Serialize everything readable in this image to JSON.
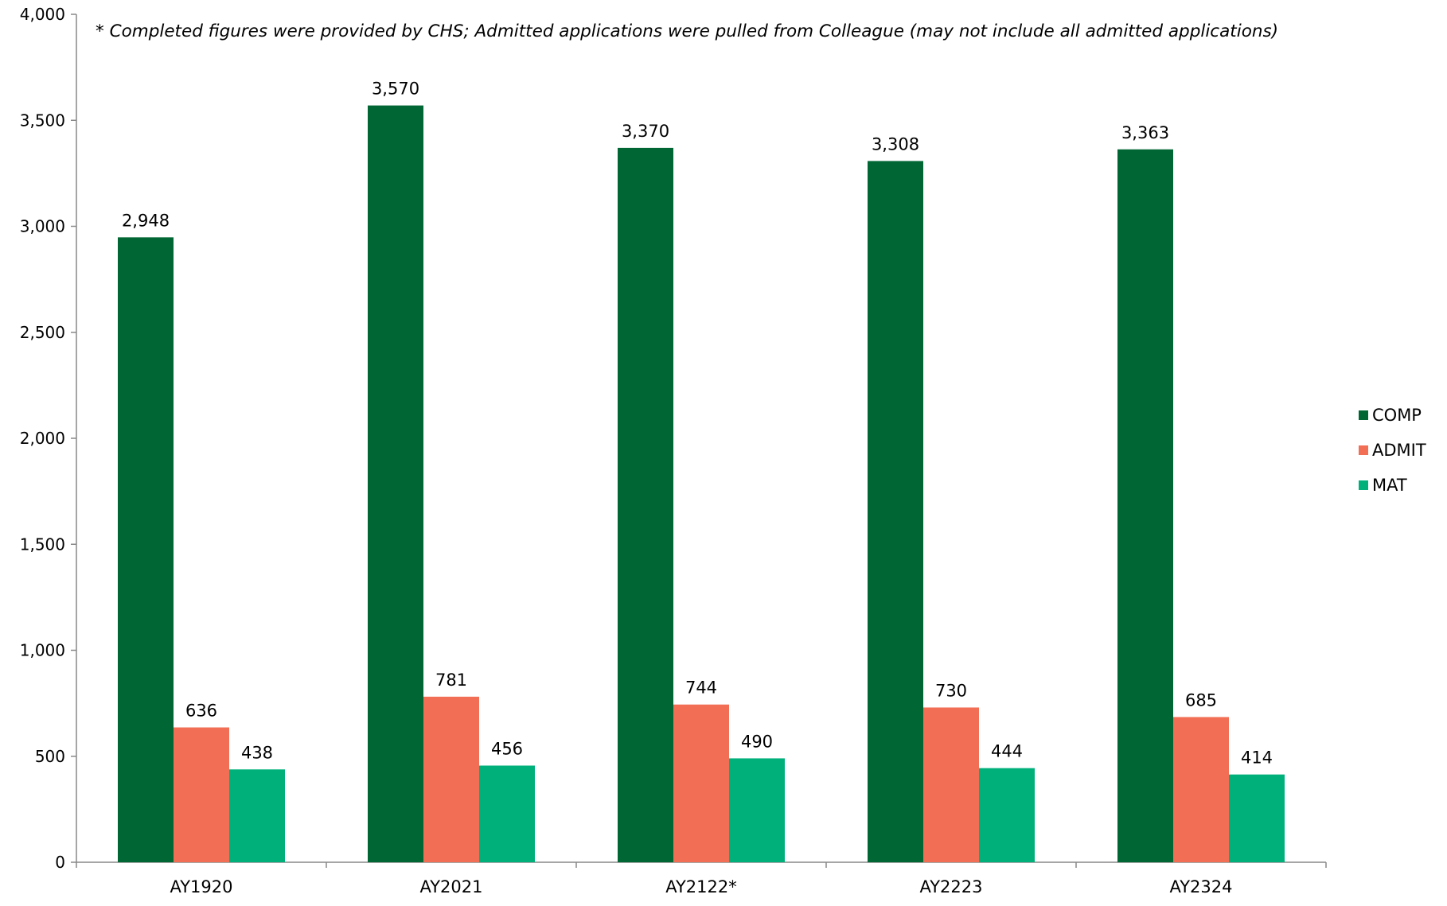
{
  "chart_data": {
    "type": "bar",
    "annotation": "* Completed figures were provided by CHS; Admitted applications were pulled from Colleague (may not include all admitted applications)",
    "categories": [
      "AY1920",
      "AY2021",
      "AY2122*",
      "AY2223",
      "AY2324"
    ],
    "series": [
      {
        "name": "COMP",
        "color": "#006633",
        "values": [
          2948,
          3570,
          3370,
          3308,
          3363
        ],
        "labels": [
          "2,948",
          "3,570",
          "3,370",
          "3,308",
          "3,363"
        ]
      },
      {
        "name": "ADMIT",
        "color": "#f26f55",
        "values": [
          636,
          781,
          744,
          730,
          685
        ],
        "labels": [
          "636",
          "781",
          "744",
          "730",
          "685"
        ]
      },
      {
        "name": "MAT",
        "color": "#00b07a",
        "values": [
          438,
          456,
          490,
          444,
          414
        ],
        "labels": [
          "438",
          "456",
          "490",
          "444",
          "414"
        ]
      }
    ],
    "ylim": [
      0,
      4000
    ],
    "yticks": [
      0,
      500,
      1000,
      1500,
      2000,
      2500,
      3000,
      3500,
      4000
    ],
    "ytick_labels": [
      "0",
      "500",
      "1,000",
      "1,500",
      "2,000",
      "2,500",
      "3,000",
      "3,500",
      "4,000"
    ],
    "legend_position": "right",
    "grid": false,
    "title": "",
    "xlabel": "",
    "ylabel": ""
  }
}
